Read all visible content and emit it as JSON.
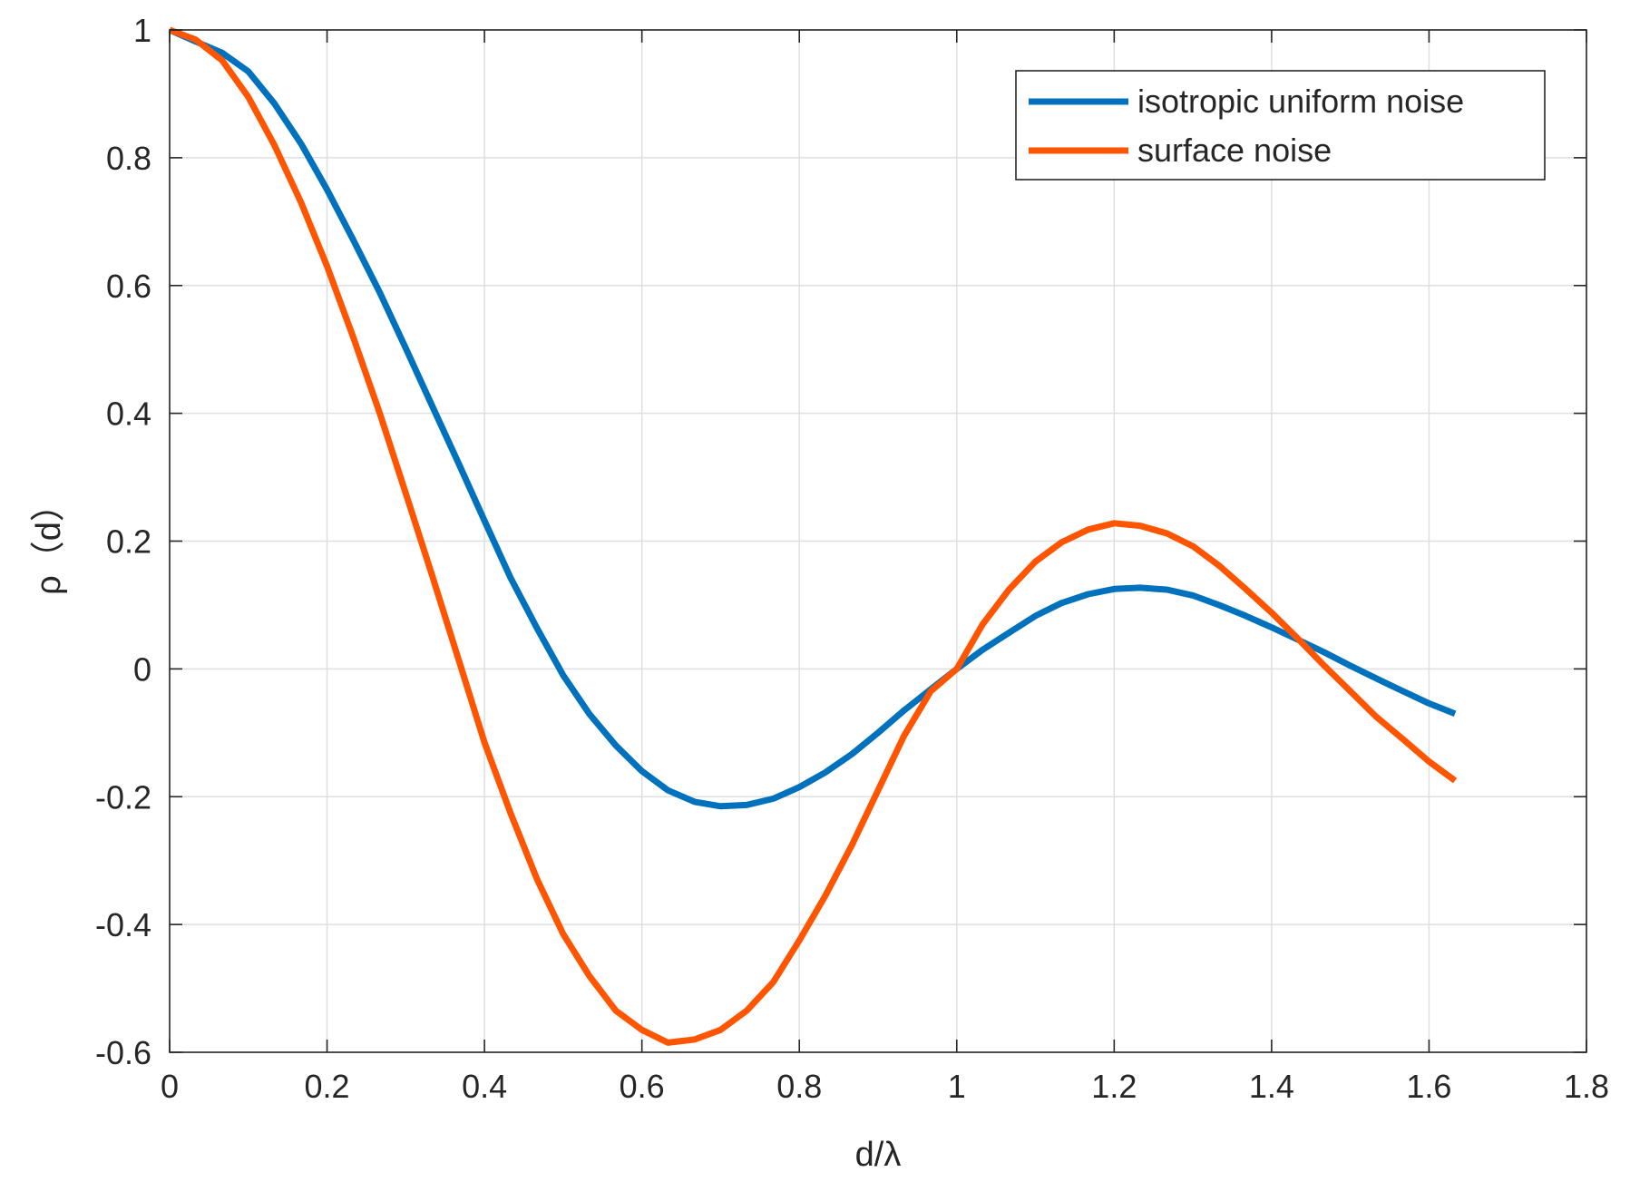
{
  "chart_data": {
    "type": "line",
    "title": "",
    "xlabel": "d/λ",
    "ylabel": "ρ（d）",
    "xlim": [
      0,
      1.8
    ],
    "ylim": [
      -0.6,
      1
    ],
    "xticks": [
      0,
      0.2,
      0.4,
      0.6,
      0.8,
      1,
      1.2,
      1.4,
      1.6,
      1.8
    ],
    "xtick_labels": [
      "0",
      "0.2",
      "0.4",
      "0.6",
      "0.8",
      "1",
      "1.2",
      "1.4",
      "1.6",
      "1.8"
    ],
    "yticks": [
      -0.6,
      -0.4,
      -0.2,
      0,
      0.2,
      0.4,
      0.6,
      0.8,
      1
    ],
    "ytick_labels": [
      "-0.6",
      "-0.4",
      "-0.2",
      "0",
      "0.2",
      "0.4",
      "0.6",
      "0.8",
      "1"
    ],
    "grid": true,
    "legend_position": "top-right",
    "x": [
      0,
      0.033,
      0.067,
      0.1,
      0.133,
      0.167,
      0.2,
      0.233,
      0.267,
      0.3,
      0.333,
      0.367,
      0.4,
      0.433,
      0.467,
      0.5,
      0.533,
      0.567,
      0.6,
      0.633,
      0.667,
      0.7,
      0.733,
      0.767,
      0.8,
      0.833,
      0.867,
      0.9,
      0.933,
      0.967,
      1,
      1.033,
      1.067,
      1.1,
      1.133,
      1.167,
      1.2,
      1.233,
      1.267,
      1.3,
      1.333,
      1.367,
      1.4,
      1.433,
      1.467,
      1.5,
      1.533,
      1.567,
      1.6,
      1.633
    ],
    "series": [
      {
        "name": "isotropic uniform noise",
        "color": "#0072BD",
        "values": [
          1,
          0.982,
          0.964,
          0.935,
          0.885,
          0.822,
          0.75,
          0.672,
          0.589,
          0.502,
          0.413,
          0.322,
          0.232,
          0.143,
          0.063,
          -0.01,
          -0.07,
          -0.12,
          -0.16,
          -0.19,
          -0.208,
          -0.215,
          -0.213,
          -0.203,
          -0.185,
          -0.162,
          -0.133,
          -0.1,
          -0.065,
          -0.032,
          0,
          0.03,
          0.057,
          0.083,
          0.103,
          0.117,
          0.125,
          0.127,
          0.124,
          0.115,
          0.1,
          0.083,
          0.065,
          0.046,
          0.026,
          0.005,
          -0.015,
          -0.035,
          -0.054,
          -0.07
        ]
      },
      {
        "name": "surface noise",
        "color": "#FF5500",
        "values": [
          1,
          0.985,
          0.952,
          0.895,
          0.82,
          0.73,
          0.63,
          0.52,
          0.4,
          0.275,
          0.148,
          0.015,
          -0.115,
          -0.225,
          -0.33,
          -0.415,
          -0.48,
          -0.535,
          -0.565,
          -0.585,
          -0.58,
          -0.565,
          -0.535,
          -0.49,
          -0.425,
          -0.355,
          -0.275,
          -0.19,
          -0.105,
          -0.035,
          0,
          0.07,
          0.125,
          0.168,
          0.198,
          0.218,
          0.228,
          0.224,
          0.212,
          0.192,
          0.162,
          0.125,
          0.088,
          0.048,
          0.005,
          -0.035,
          -0.075,
          -0.11,
          -0.145,
          -0.175
        ]
      }
    ]
  }
}
